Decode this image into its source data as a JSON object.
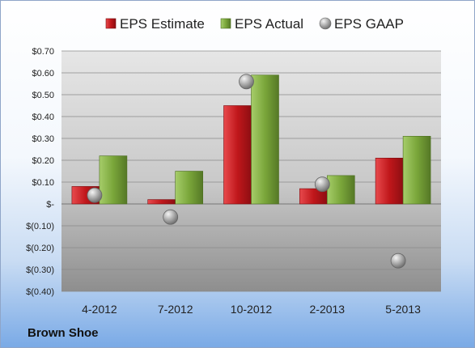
{
  "company": "Brown Shoe",
  "colors": {
    "estimate": "#c0171b",
    "actual": "#7aa63a",
    "gaap": "#9a9a9a"
  },
  "chart_data": {
    "type": "bar",
    "title": "",
    "xlabel": "",
    "ylabel": "",
    "categories": [
      "4-2012",
      "7-2012",
      "10-2012",
      "2-2013",
      "5-2013"
    ],
    "series": [
      {
        "name": "EPS Estimate",
        "kind": "bar",
        "values": [
          0.08,
          0.02,
          0.45,
          0.07,
          0.21
        ]
      },
      {
        "name": "EPS Actual",
        "kind": "bar",
        "values": [
          0.22,
          0.15,
          0.59,
          0.13,
          0.31
        ]
      },
      {
        "name": "EPS GAAP",
        "kind": "marker",
        "values": [
          0.04,
          -0.06,
          0.56,
          0.09,
          -0.26
        ]
      }
    ],
    "ylim": [
      -0.4,
      0.7
    ],
    "yticks": [
      0.7,
      0.6,
      0.5,
      0.4,
      0.3,
      0.2,
      0.1,
      0,
      -0.1,
      -0.2,
      -0.3,
      -0.4
    ],
    "ytick_labels": [
      "$0.70",
      "$0.60",
      "$0.50",
      "$0.40",
      "$0.30",
      "$0.20",
      "$0.10",
      "$-",
      "$(0.10)",
      "$(0.20)",
      "$(0.30)",
      "$(0.40)"
    ],
    "legend_position": "top",
    "grid": true
  }
}
